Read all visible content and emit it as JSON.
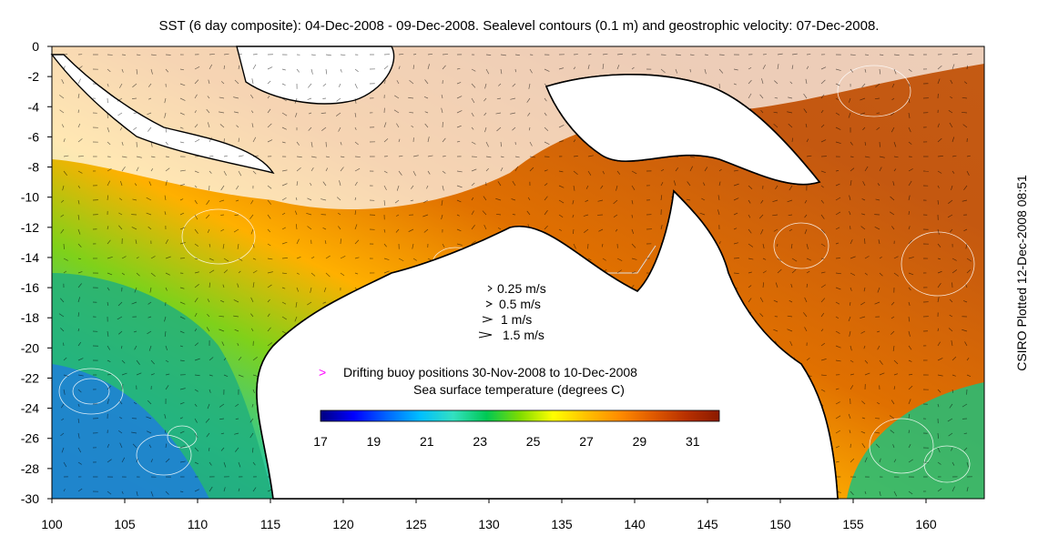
{
  "title": "SST (6 day composite): 04-Dec-2008 - 09-Dec-2008. Sealevel contours (0.1 m) and geostrophic velocity: 07-Dec-2008.",
  "side_note": "CSIRO Plotted 12-Dec-2008 08:51",
  "axes": {
    "x_ticks": [
      "100",
      "105",
      "110",
      "115",
      "120",
      "125",
      "130",
      "135",
      "140",
      "145",
      "150",
      "155",
      "160"
    ],
    "y_ticks": [
      "0",
      "-2",
      "-4",
      "-6",
      "-8",
      "-10",
      "-12",
      "-14",
      "-16",
      "-18",
      "-20",
      "-22",
      "-24",
      "-26",
      "-28",
      "-30"
    ],
    "xlim": [
      100,
      164
    ],
    "ylim": [
      -30,
      0
    ]
  },
  "velocity_key": {
    "items": [
      {
        "label": "0.25 m/s"
      },
      {
        "label": "0.5 m/s"
      },
      {
        "label": "1 m/s"
      },
      {
        "label": "1.5 m/s"
      }
    ]
  },
  "buoy_legend": {
    "marker": ">",
    "label": "Drifting buoy positions 30-Nov-2008 to 10-Dec-2008",
    "color": "#ff00ff"
  },
  "colorbar": {
    "title": "Sea surface temperature (degrees C)",
    "tick_labels": [
      "17",
      "19",
      "21",
      "23",
      "25",
      "27",
      "29",
      "31"
    ],
    "range": [
      17,
      32
    ],
    "colors": [
      "#00007f",
      "#0000ff",
      "#0066ff",
      "#00bfff",
      "#33e0c0",
      "#00c853",
      "#7fdc00",
      "#ffff00",
      "#ffc000",
      "#ff8c00",
      "#e05a00",
      "#b83000",
      "#8b1a00"
    ]
  }
}
